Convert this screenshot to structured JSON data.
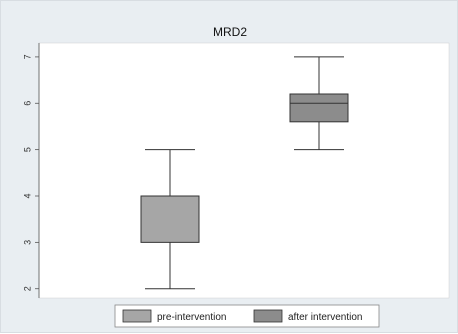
{
  "chart_data": {
    "type": "box",
    "title": "MRD2",
    "xlabel": "",
    "ylabel": "",
    "ylim": [
      1.8,
      7.3
    ],
    "yticks": [
      2,
      3,
      4,
      5,
      6,
      7
    ],
    "grid": false,
    "legend_position": "bottom",
    "series": [
      {
        "name": "pre-intervention",
        "min": 2,
        "q1": 3,
        "median": 4,
        "q3": 4,
        "max": 5,
        "color": "#a6a6a6"
      },
      {
        "name": "after intervention",
        "min": 5,
        "q1": 5.6,
        "median": 6,
        "q3": 6.2,
        "max": 7,
        "color": "#8c8c8c"
      }
    ]
  }
}
